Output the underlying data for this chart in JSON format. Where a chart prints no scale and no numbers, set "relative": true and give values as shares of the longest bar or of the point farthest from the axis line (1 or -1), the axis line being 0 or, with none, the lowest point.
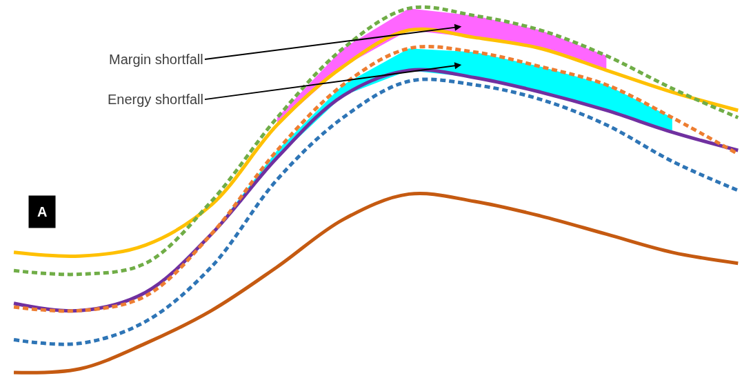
{
  "chart_data": {
    "type": "line",
    "relative": true,
    "categories": [
      null,
      null,
      null,
      null,
      null,
      null,
      null,
      null,
      null,
      null,
      null,
      null
    ],
    "annotations": [
      "A",
      "Margin shortfall",
      "Energy shortfall"
    ],
    "series": [
      {
        "color": "#ffc000",
        "line_style": "solid",
        "values": [
          0.33,
          0.32,
          0.35,
          0.46,
          0.68,
          0.84,
          0.94,
          0.92,
          0.89,
          0.83,
          0.77,
          0.72
        ],
        "lower": [
          null,
          null,
          null,
          null,
          0.68,
          0.84,
          0.94,
          0.92,
          0.89,
          0.83,
          null,
          null
        ],
        "upper": [
          null,
          null,
          null,
          null,
          0.7,
          0.89,
          1.0,
          0.98,
          0.94,
          0.87,
          null,
          null
        ]
      },
      {
        "color": "#70ad47",
        "line_style": "dashed",
        "values": [
          0.28,
          0.27,
          0.3,
          0.47,
          0.7,
          0.89,
          1.0,
          0.98,
          0.94,
          0.87,
          0.78,
          0.7
        ]
      },
      {
        "color": "#7030a0",
        "line_style": "solid",
        "values": [
          0.19,
          0.17,
          0.22,
          0.38,
          0.59,
          0.76,
          0.83,
          0.81,
          0.77,
          0.72,
          0.66,
          0.61
        ],
        "lower": [
          null,
          null,
          null,
          0.38,
          0.59,
          0.76,
          0.83,
          0.81,
          0.77,
          0.72,
          0.66,
          null
        ],
        "upper": [
          null,
          null,
          null,
          0.38,
          0.61,
          0.79,
          0.89,
          0.88,
          0.84,
          0.79,
          0.7,
          null
        ]
      },
      {
        "color": "#ed7d31",
        "line_style": "dashed",
        "values": [
          0.18,
          0.17,
          0.21,
          0.38,
          0.61,
          0.79,
          0.89,
          0.88,
          0.84,
          0.79,
          0.7,
          0.6
        ]
      },
      {
        "color": "#2e75b6",
        "line_style": "dashed",
        "values": [
          0.09,
          0.08,
          0.14,
          0.29,
          0.53,
          0.7,
          0.8,
          0.79,
          0.75,
          0.68,
          0.58,
          0.5
        ]
      },
      {
        "color": "#c55a11",
        "line_style": "solid",
        "values": [
          0.0,
          0.01,
          0.08,
          0.17,
          0.29,
          0.42,
          0.49,
          0.47,
          0.43,
          0.38,
          0.33,
          0.3
        ]
      }
    ]
  }
}
